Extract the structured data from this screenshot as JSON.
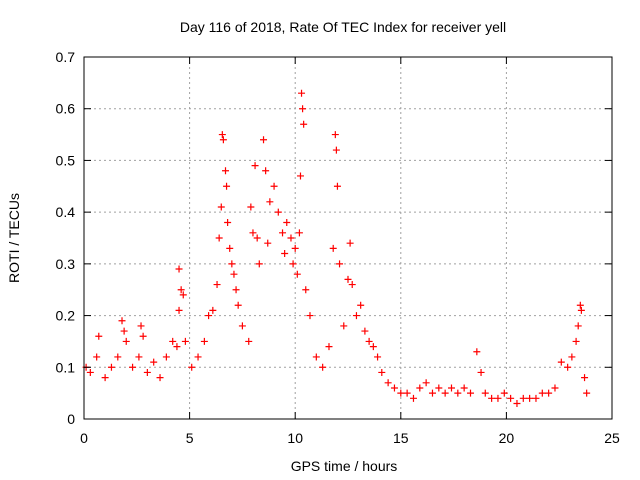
{
  "chart_data": {
    "type": "scatter",
    "title": "Day 116 of 2018, Rate Of TEC Index for receiver yell",
    "xlabel": "GPS time / hours",
    "ylabel": "ROTI / TECUs",
    "xlim": [
      0,
      25
    ],
    "ylim": [
      0,
      0.7
    ],
    "x_ticks": [
      0,
      5,
      10,
      15,
      20,
      25
    ],
    "x_tick_labels": [
      "0",
      "5",
      "10",
      "15",
      "20",
      "25"
    ],
    "y_ticks": [
      0,
      0.1,
      0.2,
      0.3,
      0.4,
      0.5,
      0.6,
      0.7
    ],
    "y_tick_labels": [
      "0",
      "0.1",
      "0.2",
      "0.3",
      "0.4",
      "0.5",
      "0.6",
      "0.7"
    ],
    "grid": true,
    "marker": "+",
    "color": "#ff0000",
    "series": [
      {
        "name": "ROTI",
        "points": [
          [
            0.1,
            0.1
          ],
          [
            0.3,
            0.09
          ],
          [
            0.6,
            0.12
          ],
          [
            0.7,
            0.16
          ],
          [
            1.0,
            0.08
          ],
          [
            1.3,
            0.1
          ],
          [
            1.6,
            0.12
          ],
          [
            1.8,
            0.19
          ],
          [
            1.9,
            0.17
          ],
          [
            2.0,
            0.15
          ],
          [
            2.3,
            0.1
          ],
          [
            2.6,
            0.12
          ],
          [
            2.7,
            0.18
          ],
          [
            2.8,
            0.16
          ],
          [
            3.0,
            0.09
          ],
          [
            3.3,
            0.11
          ],
          [
            3.6,
            0.08
          ],
          [
            3.9,
            0.12
          ],
          [
            4.2,
            0.15
          ],
          [
            4.4,
            0.14
          ],
          [
            4.5,
            0.29
          ],
          [
            4.6,
            0.25
          ],
          [
            4.7,
            0.24
          ],
          [
            4.5,
            0.21
          ],
          [
            4.8,
            0.15
          ],
          [
            5.1,
            0.1
          ],
          [
            5.4,
            0.12
          ],
          [
            5.7,
            0.15
          ],
          [
            5.9,
            0.2
          ],
          [
            6.1,
            0.21
          ],
          [
            6.3,
            0.26
          ],
          [
            6.4,
            0.35
          ],
          [
            6.5,
            0.41
          ],
          [
            6.55,
            0.55
          ],
          [
            6.6,
            0.54
          ],
          [
            6.7,
            0.48
          ],
          [
            6.75,
            0.45
          ],
          [
            6.8,
            0.38
          ],
          [
            6.9,
            0.33
          ],
          [
            7.0,
            0.3
          ],
          [
            7.1,
            0.28
          ],
          [
            7.2,
            0.25
          ],
          [
            7.3,
            0.22
          ],
          [
            7.5,
            0.18
          ],
          [
            7.8,
            0.15
          ],
          [
            7.9,
            0.41
          ],
          [
            8.0,
            0.36
          ],
          [
            8.1,
            0.49
          ],
          [
            8.2,
            0.35
          ],
          [
            8.3,
            0.3
          ],
          [
            8.5,
            0.54
          ],
          [
            8.6,
            0.48
          ],
          [
            8.7,
            0.34
          ],
          [
            8.8,
            0.42
          ],
          [
            9.0,
            0.45
          ],
          [
            9.2,
            0.4
          ],
          [
            9.4,
            0.36
          ],
          [
            9.5,
            0.32
          ],
          [
            9.6,
            0.38
          ],
          [
            9.8,
            0.35
          ],
          [
            9.9,
            0.3
          ],
          [
            10.0,
            0.33
          ],
          [
            10.1,
            0.28
          ],
          [
            10.2,
            0.36
          ],
          [
            10.25,
            0.47
          ],
          [
            10.3,
            0.63
          ],
          [
            10.35,
            0.6
          ],
          [
            10.4,
            0.57
          ],
          [
            10.5,
            0.25
          ],
          [
            10.7,
            0.2
          ],
          [
            11.0,
            0.12
          ],
          [
            11.3,
            0.1
          ],
          [
            11.6,
            0.14
          ],
          [
            11.8,
            0.33
          ],
          [
            11.9,
            0.55
          ],
          [
            11.95,
            0.52
          ],
          [
            12.0,
            0.45
          ],
          [
            12.1,
            0.3
          ],
          [
            12.3,
            0.18
          ],
          [
            12.5,
            0.27
          ],
          [
            12.6,
            0.34
          ],
          [
            12.7,
            0.26
          ],
          [
            12.9,
            0.2
          ],
          [
            13.1,
            0.22
          ],
          [
            13.3,
            0.17
          ],
          [
            13.5,
            0.15
          ],
          [
            13.7,
            0.14
          ],
          [
            13.9,
            0.12
          ],
          [
            14.1,
            0.09
          ],
          [
            14.4,
            0.07
          ],
          [
            14.7,
            0.06
          ],
          [
            15.0,
            0.05
          ],
          [
            15.3,
            0.05
          ],
          [
            15.6,
            0.04
          ],
          [
            15.9,
            0.06
          ],
          [
            16.2,
            0.07
          ],
          [
            16.5,
            0.05
          ],
          [
            16.8,
            0.06
          ],
          [
            17.1,
            0.05
          ],
          [
            17.4,
            0.06
          ],
          [
            17.7,
            0.05
          ],
          [
            18.0,
            0.06
          ],
          [
            18.3,
            0.05
          ],
          [
            18.6,
            0.13
          ],
          [
            18.8,
            0.09
          ],
          [
            19.0,
            0.05
          ],
          [
            19.3,
            0.04
          ],
          [
            19.6,
            0.04
          ],
          [
            19.9,
            0.05
          ],
          [
            20.2,
            0.04
          ],
          [
            20.5,
            0.03
          ],
          [
            20.8,
            0.04
          ],
          [
            21.1,
            0.04
          ],
          [
            21.4,
            0.04
          ],
          [
            21.7,
            0.05
          ],
          [
            22.0,
            0.05
          ],
          [
            22.3,
            0.06
          ],
          [
            22.6,
            0.11
          ],
          [
            22.9,
            0.1
          ],
          [
            23.1,
            0.12
          ],
          [
            23.3,
            0.15
          ],
          [
            23.4,
            0.18
          ],
          [
            23.5,
            0.22
          ],
          [
            23.55,
            0.21
          ],
          [
            23.7,
            0.08
          ],
          [
            23.8,
            0.05
          ]
        ]
      }
    ]
  }
}
